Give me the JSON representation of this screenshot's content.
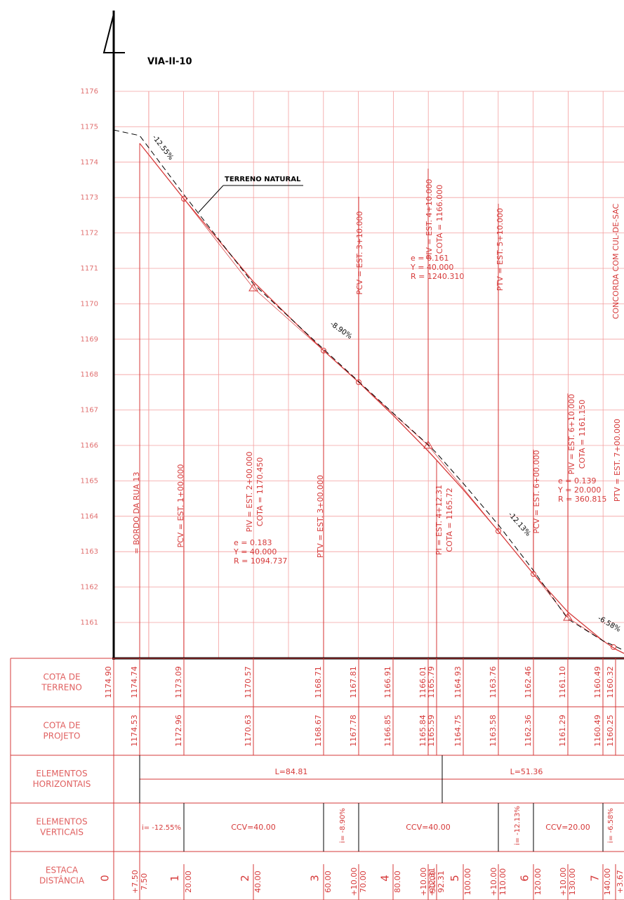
{
  "title": "VIA-II-10",
  "y_labels": [
    1176,
    1175,
    1174,
    1173,
    1172,
    1171,
    1170,
    1169,
    1168,
    1167,
    1166,
    1165,
    1164,
    1163,
    1162,
    1161
  ],
  "terreno_label": "TERRENO NATURAL",
  "grades": [
    "-12.55%",
    "-8.90%",
    "-12.13%",
    "-6.58%"
  ],
  "annotations": [
    {
      "lines": [
        "= BORDO DA RUA 13"
      ]
    },
    {
      "lines": [
        "PCV = EST. 1+00.000"
      ]
    },
    {
      "lines": [
        "PIV = EST. 2+00.000",
        "COTA = 1170.450"
      ]
    },
    {
      "lines": [
        "e = 0.183",
        "Y = 40.000",
        "R = 1094.737"
      ]
    },
    {
      "lines": [
        "PTV = EST. 3+00.000"
      ]
    },
    {
      "lines": [
        "PCV = EST. 3+10.000"
      ]
    },
    {
      "lines": [
        "PIV = EST. 4+10.000",
        "COTA = 1166.000"
      ]
    },
    {
      "lines": [
        "e = 0.161",
        "Y = 40.000",
        "R = 1240.310"
      ]
    },
    {
      "lines": [
        "PI = EST. 4+12.31",
        "COTA = 1165.72"
      ]
    },
    {
      "lines": [
        "PTV = EST. 5+10.000"
      ]
    },
    {
      "lines": [
        "PCV = EST. 6+00.000"
      ]
    },
    {
      "lines": [
        "PIV = EST. 6+10.000",
        "COTA = 1161.150"
      ]
    },
    {
      "lines": [
        "e = 0.139",
        "Y = 20.000",
        "R = 360.815"
      ]
    },
    {
      "lines": [
        "PTV = EST. 7+00.000"
      ]
    },
    {
      "lines": [
        "CONCORDA COM CUL-DE-SAC"
      ]
    }
  ],
  "table": {
    "row_headers": [
      [
        "COTA DE",
        "TERRENO"
      ],
      [
        "COTA DE",
        "PROJETO"
      ],
      [
        "ELEMENTOS",
        "HORIZONTAIS"
      ],
      [
        "ELEMENTOS",
        "VERTICAIS"
      ],
      [
        "ESTACA",
        "DISTÂNCIA"
      ]
    ],
    "cota_terreno": [
      "1174.90",
      "1174.74",
      "1173.09",
      "1170.57",
      "1168.71",
      "1167.81",
      "1166.91",
      "1166.01",
      "1165.79",
      "1164.93",
      "1163.76",
      "1162.46",
      "1161.10",
      "1160.49",
      "1160.32"
    ],
    "cota_projeto": [
      "1174.53",
      "1172.96",
      "1170.63",
      "1168.67",
      "1167.78",
      "1166.85",
      "1165.84",
      "1165.59",
      "1164.75",
      "1163.58",
      "1162.36",
      "1161.29",
      "1160.49",
      "1160.25"
    ],
    "horizontais": [
      "L=84.81",
      "L=51.36"
    ],
    "verticais": [
      "i= -12.55%",
      "CCV=40.00",
      "i= -8.90%",
      "CCV=40.00",
      "i= -12.13%",
      "CCV=20.00",
      "i= -6.58%"
    ],
    "estacas": [
      "0",
      "1",
      "2",
      "3",
      "4",
      "5",
      "6",
      "7"
    ],
    "distancias": [
      [
        "+7.50",
        "7.50"
      ],
      [
        "20.00"
      ],
      [
        "40.00"
      ],
      [
        "60.00"
      ],
      [
        "+10.00",
        "70.00"
      ],
      [
        "80.00"
      ],
      [
        "+10.00",
        "90.00"
      ],
      [
        "+12.31",
        "92.31"
      ],
      [
        "100.00"
      ],
      [
        "+10.00",
        "110.00"
      ],
      [
        "120.00"
      ],
      [
        "+10.00",
        "130.00"
      ],
      [
        "140.00"
      ],
      [
        "+3.67"
      ]
    ]
  }
}
